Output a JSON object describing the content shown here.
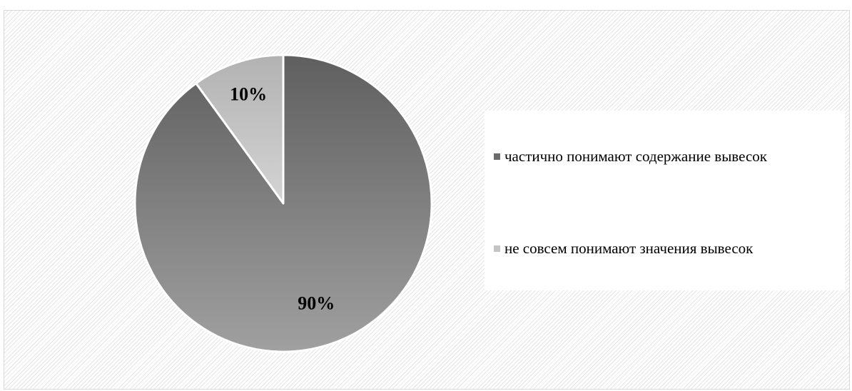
{
  "chart_data": {
    "type": "pie",
    "start_angle_deg": 0,
    "direction": "clockwise",
    "slices": [
      {
        "label": "частично понимают содержание вывесок",
        "value": 90,
        "display": "90%",
        "color_top": "#5f5f5f",
        "color_bottom": "#a0a0a0"
      },
      {
        "label": "не совсем понимают значения вывесок",
        "value": 10,
        "display": "10%",
        "color_top": "#b2b2b2",
        "color_bottom": "#d4d4d4"
      }
    ],
    "legend": {
      "placement": "right",
      "items": [
        {
          "label": "частично понимают содержание вывесок",
          "color": "#6b6b6b"
        },
        {
          "label": "не совсем понимают значения вывесок",
          "color": "#c4c4c4"
        }
      ]
    }
  }
}
